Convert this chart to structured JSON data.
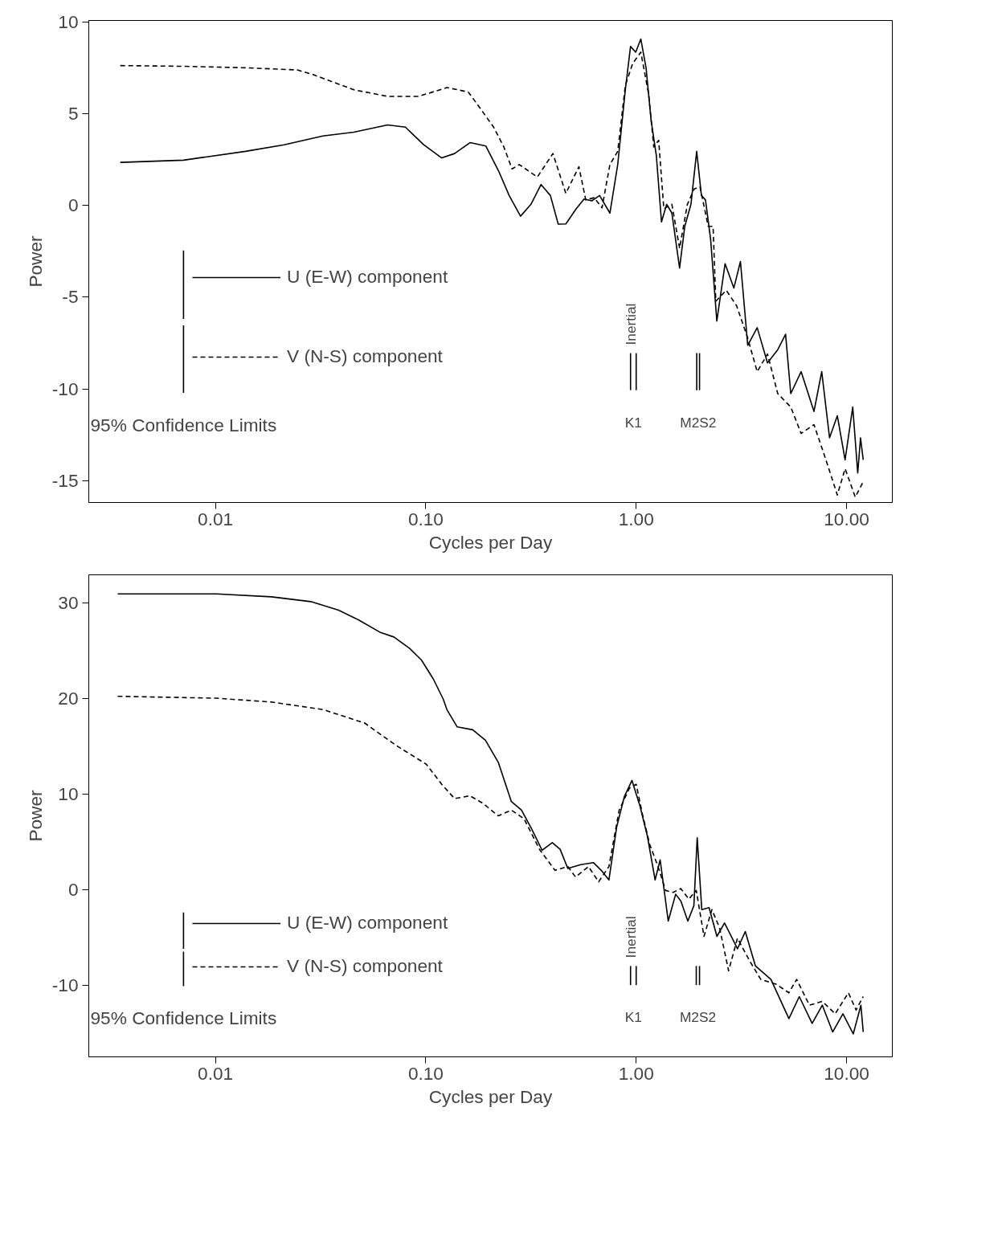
{
  "chart_data": [
    {
      "type": "line",
      "xlabel": "Cycles per Day",
      "ylabel": "Power",
      "log": "x",
      "xlim": [
        0.0025,
        16.5
      ],
      "ylim": [
        -16.2,
        10.1
      ],
      "xticks": [
        {
          "value": 0.01,
          "label": "0.01"
        },
        {
          "value": 0.1,
          "label": "0.10"
        },
        {
          "value": 1,
          "label": "1.00"
        },
        {
          "value": 10,
          "label": "10.00"
        }
      ],
      "yticks": [
        -15,
        -10,
        -5,
        0,
        5,
        10
      ],
      "grid": false,
      "legend": "bottom left",
      "marker": "none",
      "series": [
        {
          "name": "U (E-W) component",
          "color": "#000000",
          "line_style": "solid",
          "x": [
            0.00353,
            0.00705,
            0.0139,
            0.0212,
            0.0324,
            0.0455,
            0.0658,
            0.08,
            0.0977,
            0.119,
            0.137,
            0.1626,
            0.193,
            0.222,
            0.249,
            0.282,
            0.316,
            0.353,
            0.391,
            0.426,
            0.463,
            0.519,
            0.565,
            0.615,
            0.67,
            0.75,
            0.817,
            0.888,
            0.94,
            0.995,
            1.052,
            1.114,
            1.178,
            1.247,
            1.319,
            1.396,
            1.478,
            1.608,
            1.702,
            1.821,
            1.939,
            2.042,
            2.135,
            2.259,
            2.417,
            2.646,
            2.912,
            3.13,
            3.39,
            3.76,
            4.21,
            4.71,
            5.13,
            5.43,
            6.08,
            7.0,
            7.62,
            8.3,
            9.04,
            9.84,
            10.7,
            11.3,
            11.65,
            12.0
          ],
          "values": [
            2.36,
            2.48,
            2.96,
            3.32,
            3.8,
            4.01,
            4.4,
            4.28,
            3.32,
            2.6,
            2.84,
            3.44,
            3.25,
            1.88,
            0.55,
            -0.58,
            0.07,
            1.15,
            0.55,
            -1.01,
            -1.0,
            -0.17,
            0.36,
            0.26,
            0.55,
            -0.41,
            2.24,
            6.32,
            8.68,
            8.37,
            9.09,
            7.52,
            4.64,
            2.72,
            -0.89,
            0.07,
            -0.41,
            -3.41,
            -1.13,
            0.07,
            2.96,
            0.55,
            0.31,
            -1.85,
            -6.3,
            -3.17,
            -4.5,
            -3.05,
            -7.62,
            -6.66,
            -8.58,
            -7.86,
            -7.02,
            -10.26,
            -9.06,
            -11.23,
            -9.06,
            -12.67,
            -11.47,
            -13.87,
            -10.99,
            -14.59,
            -12.67,
            -13.87
          ]
        },
        {
          "name": "V (N-S) component",
          "color": "#000000",
          "line_style": "dashed",
          "x": [
            0.00353,
            0.00705,
            0.0139,
            0.0245,
            0.0289,
            0.0455,
            0.0658,
            0.0924,
            0.126,
            0.159,
            0.177,
            0.21,
            0.235,
            0.257,
            0.278,
            0.339,
            0.402,
            0.463,
            0.534,
            0.576,
            0.631,
            0.688,
            0.75,
            0.817,
            0.888,
            0.963,
            1.052,
            1.146,
            1.212,
            1.279,
            1.353,
            1.478,
            1.608,
            1.751,
            1.887,
            2.01,
            2.2,
            2.32,
            2.39,
            2.68,
            3.0,
            3.37,
            3.76,
            4.21,
            4.71,
            5.43,
            6.08,
            7.0,
            7.85,
            9.04,
            9.84,
            11.0,
            12.0
          ],
          "values": [
            7.64,
            7.6,
            7.52,
            7.4,
            7.16,
            6.32,
            5.96,
            5.96,
            6.44,
            6.2,
            5.48,
            4.28,
            3.2,
            2.0,
            2.24,
            1.56,
            2.84,
            0.67,
            2.12,
            0.31,
            0.43,
            -0.12,
            2.24,
            2.96,
            6.56,
            7.76,
            8.37,
            6.08,
            3.2,
            3.56,
            -0.17,
            0.07,
            -2.33,
            0.07,
            0.91,
            1.03,
            -1.13,
            -1.13,
            -5.22,
            -4.62,
            -5.46,
            -7.14,
            -9.06,
            -8.1,
            -10.26,
            -10.99,
            -12.43,
            -11.95,
            -13.63,
            -15.79,
            -14.35,
            -15.9,
            -15.07
          ]
        },
        {
          "color": "#000000",
          "line_style": "solid",
          "x": [
            0.00705,
            0.00705
          ],
          "values": [
            -2.45,
            -6.18
          ]
        },
        {
          "color": "#000000",
          "line_style": "solid",
          "x": [
            0.00705,
            0.00705
          ],
          "values": [
            -6.54,
            -10.22
          ]
        },
        {
          "color": "#000000",
          "line_style": "solid",
          "x": [
            0.94,
            0.94
          ],
          "values": [
            -8.05,
            -10.07
          ]
        },
        {
          "color": "#000000",
          "line_style": "solid",
          "x": [
            1.0,
            1.0
          ],
          "values": [
            -8.05,
            -10.07
          ]
        },
        {
          "color": "#000000",
          "line_style": "solid",
          "x": [
            1.94,
            1.94
          ],
          "values": [
            -8.05,
            -10.07
          ]
        },
        {
          "color": "#000000",
          "line_style": "solid",
          "x": [
            2.0,
            2.0
          ],
          "values": [
            -8.05,
            -10.07
          ]
        }
      ],
      "annotations": [
        "95% Confidence Limits",
        "Inertial",
        "K1",
        "M2S2"
      ]
    },
    {
      "type": "line",
      "xlabel": "Cycles per Day",
      "ylabel": "Power",
      "log": "x",
      "xlim": [
        0.0025,
        16.5
      ],
      "ylim": [
        -17.5,
        32.9
      ],
      "xticks": [
        {
          "value": 0.01,
          "label": "0.01"
        },
        {
          "value": 0.1,
          "label": "0.10"
        },
        {
          "value": 1,
          "label": "1.00"
        },
        {
          "value": 10,
          "label": "10.00"
        }
      ],
      "yticks": [
        -10,
        0,
        10,
        20,
        30
      ],
      "grid": false,
      "legend": "bottom left",
      "marker": "none",
      "series": [
        {
          "name": "U (E-W) component",
          "color": "#000000",
          "line_style": "solid",
          "x": [
            0.00343,
            0.0101,
            0.01845,
            0.0284,
            0.0385,
            0.0478,
            0.0605,
            0.0705,
            0.0838,
            0.0953,
            0.1086,
            0.121,
            0.126,
            0.141,
            0.167,
            0.192,
            0.221,
            0.255,
            0.285,
            0.319,
            0.357,
            0.399,
            0.435,
            0.473,
            0.545,
            0.627,
            0.682,
            0.742,
            0.807,
            0.878,
            0.955,
            1.04,
            1.13,
            1.23,
            1.3,
            1.42,
            1.54,
            1.63,
            1.76,
            1.88,
            1.95,
            2.05,
            2.22,
            2.42,
            2.63,
            3.03,
            3.3,
            3.69,
            4.37,
            5.32,
            5.96,
            6.86,
            7.67,
            8.59,
            9.61,
            10.76,
            11.7,
            12.0
          ],
          "values": [
            30.9,
            30.9,
            30.6,
            30.1,
            29.2,
            28.2,
            26.9,
            26.4,
            25.2,
            24.0,
            22.0,
            19.9,
            18.8,
            17.0,
            16.7,
            15.6,
            13.3,
            9.2,
            8.3,
            6.3,
            4.1,
            4.9,
            4.2,
            2.2,
            2.6,
            2.8,
            2.0,
            1.0,
            6.5,
            9.7,
            11.4,
            8.8,
            5.6,
            1.0,
            3.1,
            -3.3,
            -0.5,
            -1.2,
            -3.3,
            -1.7,
            5.4,
            -2.1,
            -1.9,
            -4.9,
            -3.5,
            -6.2,
            -4.4,
            -8.0,
            -9.4,
            -13.5,
            -11.2,
            -14.0,
            -12.1,
            -14.9,
            -13.0,
            -15.1,
            -12.1,
            -14.9
          ]
        },
        {
          "name": "V (N-S) component",
          "color": "#000000",
          "line_style": "dashed",
          "x": [
            0.00343,
            0.0101,
            0.01845,
            0.0284,
            0.0326,
            0.0512,
            0.0718,
            0.1005,
            0.119,
            0.137,
            0.162,
            0.187,
            0.221,
            0.255,
            0.293,
            0.347,
            0.411,
            0.473,
            0.515,
            0.593,
            0.663,
            0.742,
            0.83,
            0.929,
            1.0,
            1.07,
            1.16,
            1.27,
            1.38,
            1.5,
            1.63,
            1.78,
            1.93,
            2.1,
            2.29,
            2.49,
            2.75,
            3.03,
            3.49,
            3.91,
            4.62,
            5.32,
            5.79,
            6.66,
            7.67,
            8.83,
            10.2,
            11.1,
            12.0
          ],
          "values": [
            20.2,
            20.0,
            19.6,
            19.0,
            18.8,
            17.4,
            15.1,
            13.1,
            11.0,
            9.5,
            9.8,
            9.0,
            7.7,
            8.3,
            7.4,
            4.2,
            2.0,
            2.4,
            1.3,
            2.4,
            0.8,
            2.4,
            8.3,
            10.6,
            11.0,
            7.9,
            4.7,
            2.4,
            -0.1,
            -0.3,
            0.1,
            -1.0,
            -0.1,
            -4.9,
            -2.1,
            -4.0,
            -8.5,
            -5.1,
            -7.6,
            -9.4,
            -9.9,
            -10.8,
            -9.4,
            -12.1,
            -11.7,
            -13.0,
            -10.8,
            -12.6,
            -11.2
          ]
        },
        {
          "color": "#000000",
          "line_style": "solid",
          "x": [
            0.00705,
            0.00705
          ],
          "values": [
            -2.4,
            -6.2
          ]
        },
        {
          "color": "#000000",
          "line_style": "solid",
          "x": [
            0.00705,
            0.00705
          ],
          "values": [
            -6.5,
            -10.1
          ]
        },
        {
          "color": "#000000",
          "line_style": "solid",
          "x": [
            0.94,
            0.94
          ],
          "values": [
            -8.0,
            -10.0
          ]
        },
        {
          "color": "#000000",
          "line_style": "solid",
          "x": [
            1.0,
            1.0
          ],
          "values": [
            -8.0,
            -10.0
          ]
        },
        {
          "color": "#000000",
          "line_style": "solid",
          "x": [
            1.93,
            1.93
          ],
          "values": [
            -8.0,
            -10.0
          ]
        },
        {
          "color": "#000000",
          "line_style": "solid",
          "x": [
            2.0,
            2.0
          ],
          "values": [
            -8.0,
            -10.0
          ]
        }
      ],
      "annotations": [
        "95% Confidence Limits",
        "Inertial",
        "K1",
        "M2S2"
      ]
    }
  ]
}
